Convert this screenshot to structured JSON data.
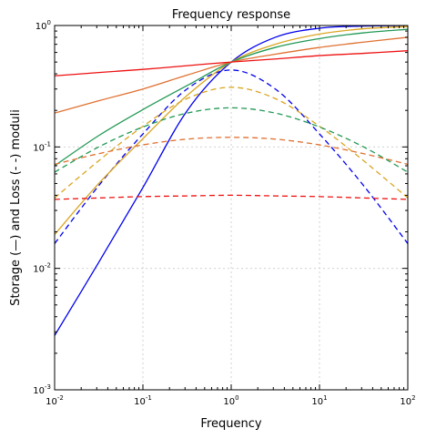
{
  "chart_data": {
    "type": "line",
    "title": "Frequency response",
    "xlabel": "Frequency",
    "ylabel": "Storage (—) and Loss (- -) moduli",
    "xscale": "log",
    "yscale": "log",
    "xlim": [
      0.01,
      100
    ],
    "ylim": [
      0.001,
      1
    ],
    "grid": true,
    "x_ticks": [
      {
        "base": "10",
        "exp": "-2",
        "value": 0.01
      },
      {
        "base": "10",
        "exp": "-1",
        "value": 0.1
      },
      {
        "base": "10",
        "exp": "0",
        "value": 1
      },
      {
        "base": "10",
        "exp": "1",
        "value": 10
      },
      {
        "base": "10",
        "exp": "2",
        "value": 100
      }
    ],
    "y_ticks": [
      {
        "base": "10",
        "exp": "-3",
        "value": 0.001
      },
      {
        "base": "10",
        "exp": "-2",
        "value": 0.01
      },
      {
        "base": "10",
        "exp": "-1",
        "value": 0.1
      },
      {
        "base": "10",
        "exp": "0",
        "value": 1
      }
    ],
    "x": [
      0.01,
      0.0316,
      0.1,
      0.316,
      1,
      3.16,
      10,
      31.6,
      100
    ],
    "series": [
      {
        "color": "#0000ee",
        "style": "solid",
        "values": [
          0.0028,
          0.0112,
          0.0463,
          0.1983,
          0.5,
          0.8,
          0.95,
          0.99,
          1.0
        ]
      },
      {
        "color": "#0000ee",
        "style": "dashed",
        "values": [
          0.016,
          0.048,
          0.128,
          0.3,
          0.43,
          0.3,
          0.128,
          0.048,
          0.016
        ]
      },
      {
        "color": "#daa520",
        "style": "solid",
        "values": [
          0.019,
          0.05,
          0.117,
          0.265,
          0.5,
          0.7,
          0.85,
          0.94,
          0.98
        ]
      },
      {
        "color": "#daa520",
        "style": "dashed",
        "values": [
          0.038,
          0.077,
          0.148,
          0.25,
          0.31,
          0.25,
          0.148,
          0.077,
          0.038
        ]
      },
      {
        "color": "#229955",
        "style": "solid",
        "values": [
          0.07,
          0.124,
          0.203,
          0.32,
          0.5,
          0.66,
          0.78,
          0.87,
          0.93
        ]
      },
      {
        "color": "#229955",
        "style": "dashed",
        "values": [
          0.062,
          0.1,
          0.146,
          0.19,
          0.21,
          0.19,
          0.146,
          0.1,
          0.062
        ]
      },
      {
        "color": "#e07030",
        "style": "solid",
        "values": [
          0.19,
          0.24,
          0.3,
          0.39,
          0.5,
          0.58,
          0.66,
          0.73,
          0.8
        ]
      },
      {
        "color": "#e07030",
        "style": "dashed",
        "values": [
          0.072,
          0.088,
          0.104,
          0.116,
          0.12,
          0.116,
          0.104,
          0.088,
          0.072
        ]
      },
      {
        "color": "#ee1111",
        "style": "solid",
        "values": [
          0.385,
          0.41,
          0.435,
          0.467,
          0.5,
          0.53,
          0.565,
          0.59,
          0.62
        ]
      },
      {
        "color": "#ee1111",
        "style": "dashed",
        "values": [
          0.037,
          0.038,
          0.039,
          0.0395,
          0.04,
          0.0395,
          0.039,
          0.038,
          0.037
        ]
      }
    ]
  }
}
